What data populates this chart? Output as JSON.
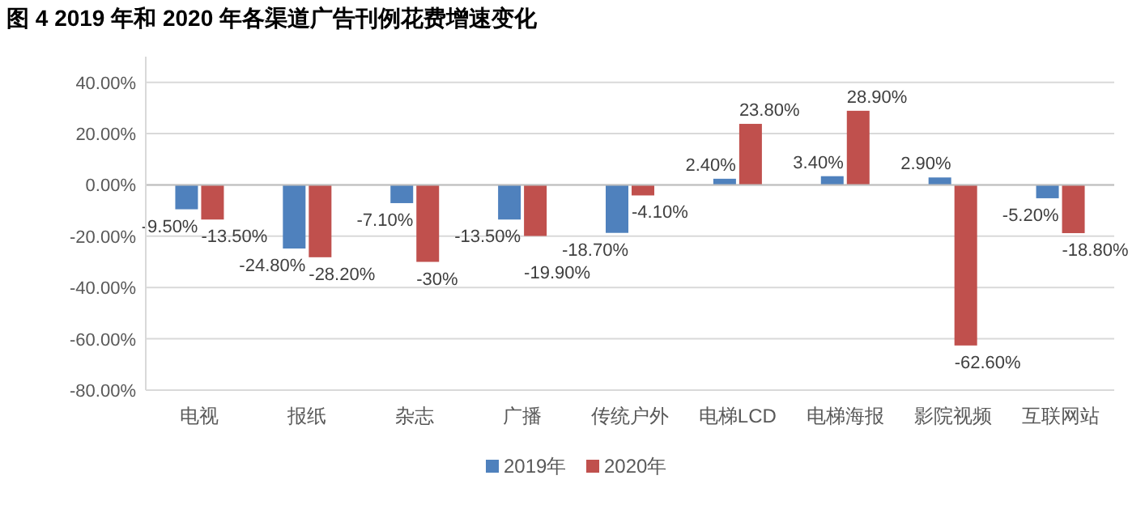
{
  "chart_data": {
    "type": "bar",
    "title": "图 4 2019 年和 2020 年各渠道广告刊例花费增速变化",
    "categories": [
      "电视",
      "报纸",
      "杂志",
      "广播",
      "传统户外",
      "电梯LCD",
      "电梯海报",
      "影院视频",
      "互联网站"
    ],
    "series": [
      {
        "name": "2019年",
        "color": "#4f81bd",
        "values": [
          -9.5,
          -24.8,
          -7.1,
          -13.5,
          -18.7,
          2.4,
          3.4,
          2.9,
          -5.2
        ],
        "value_labels": [
          "-9.50%",
          "-24.80%",
          "-7.10%",
          "-13.50%",
          "-18.70%",
          "2.40%",
          "3.40%",
          "2.90%",
          "-5.20%"
        ]
      },
      {
        "name": "2020年",
        "color": "#c0504d",
        "values": [
          -13.5,
          -28.2,
          -30,
          -19.9,
          -4.1,
          23.8,
          28.9,
          -62.6,
          -18.8
        ],
        "value_labels": [
          "-13.50%",
          "-28.20%",
          "-30%",
          "-19.90%",
          "-4.10%",
          "23.80%",
          "28.90%",
          "-62.60%",
          "-18.80%"
        ]
      }
    ],
    "ylim": [
      -80,
      50
    ],
    "yticks": [
      {
        "value": -80,
        "label": "-80.00%"
      },
      {
        "value": -60,
        "label": "-60.00%"
      },
      {
        "value": -40,
        "label": "-40.00%"
      },
      {
        "value": -20,
        "label": "-20.00%"
      },
      {
        "value": 0,
        "label": "0.00%"
      },
      {
        "value": 20,
        "label": "20.00%"
      },
      {
        "value": 40,
        "label": "40.00%"
      }
    ],
    "grid": "y",
    "legend": "bottom"
  }
}
